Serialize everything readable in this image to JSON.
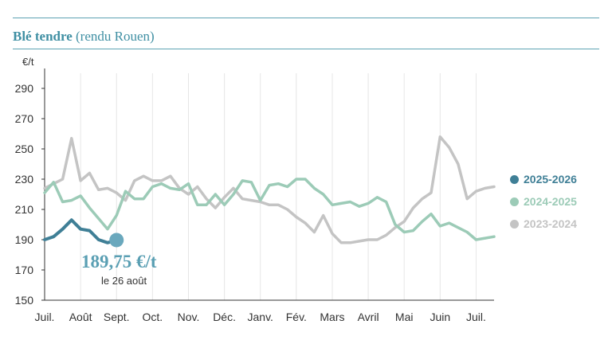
{
  "header": {
    "title": "Blé tendre",
    "subtitle": "(rendu Rouen)"
  },
  "callout": {
    "value": "189,75 €/t",
    "date": "le 26 août"
  },
  "colors": {
    "s2025": "#3f7f96",
    "s2024": "#9ccbb7",
    "s2023": "#c4c4c4",
    "axis": "#333333",
    "grid": "#e6e6e6"
  },
  "chart_data": {
    "type": "line",
    "title": "Blé tendre (rendu Rouen)",
    "ylabel": "€/t",
    "xlabel": "",
    "ylim": [
      150,
      300
    ],
    "yticks": [
      150,
      170,
      190,
      210,
      230,
      250,
      270,
      290
    ],
    "x_range": [
      0,
      12.5
    ],
    "categories": [
      "Juil.",
      "Août",
      "Sept.",
      "Oct.",
      "Nov.",
      "Déc.",
      "Janv.",
      "Fév.",
      "Mars",
      "Avril",
      "Mai",
      "Juin",
      "Juil."
    ],
    "series": [
      {
        "name": "2025-2026",
        "x": [
          0,
          0.25,
          0.5,
          0.75,
          1.0,
          1.25,
          1.5,
          1.75,
          2.0
        ],
        "values": [
          190,
          192,
          197,
          203,
          197,
          196,
          190,
          188,
          189.75
        ]
      },
      {
        "name": "2024-2025",
        "x": [
          0,
          0.25,
          0.5,
          0.75,
          1.0,
          1.25,
          1.5,
          1.75,
          2.0,
          2.25,
          2.5,
          2.75,
          3.0,
          3.25,
          3.5,
          3.75,
          4.0,
          4.25,
          4.5,
          4.75,
          5.0,
          5.25,
          5.5,
          5.75,
          6.0,
          6.25,
          6.5,
          6.75,
          7.0,
          7.25,
          7.5,
          7.75,
          8.0,
          8.25,
          8.5,
          8.75,
          9.0,
          9.25,
          9.5,
          9.75,
          10.0,
          10.25,
          10.5,
          10.75,
          11.0,
          11.25,
          11.5,
          11.75,
          12.0,
          12.25,
          12.5
        ],
        "values": [
          221,
          228,
          215,
          216,
          219,
          211,
          204,
          197,
          206,
          222,
          217,
          217,
          225,
          227,
          224,
          223,
          227,
          213,
          213,
          220,
          213,
          220,
          229,
          228,
          216,
          226,
          227,
          225,
          230,
          230,
          224,
          220,
          213,
          214,
          215,
          212,
          214,
          218,
          215,
          200,
          195,
          196,
          202,
          207,
          199,
          201,
          198,
          195,
          190,
          191,
          192
        ]
      },
      {
        "name": "2023-2024",
        "x": [
          0,
          0.25,
          0.5,
          0.75,
          1.0,
          1.25,
          1.5,
          1.75,
          2.0,
          2.25,
          2.5,
          2.75,
          3.0,
          3.25,
          3.5,
          3.75,
          4.0,
          4.25,
          4.5,
          4.75,
          5.0,
          5.25,
          5.5,
          5.75,
          6.0,
          6.25,
          6.5,
          6.75,
          7.0,
          7.25,
          7.5,
          7.75,
          8.0,
          8.25,
          8.5,
          8.75,
          9.0,
          9.25,
          9.5,
          9.75,
          10.0,
          10.25,
          10.5,
          10.75,
          11.0,
          11.25,
          11.5,
          11.75,
          12.0,
          12.25,
          12.5
        ],
        "values": [
          224,
          227,
          230,
          257,
          229,
          234,
          223,
          224,
          221,
          216,
          229,
          232,
          229,
          229,
          232,
          224,
          220,
          225,
          217,
          211,
          218,
          224,
          217,
          216,
          215,
          213,
          213,
          210,
          205,
          201,
          195,
          206,
          194,
          188,
          188,
          189,
          190,
          190,
          193,
          198,
          202,
          211,
          217,
          221,
          258,
          251,
          240,
          217,
          222,
          224,
          225
        ]
      }
    ]
  }
}
